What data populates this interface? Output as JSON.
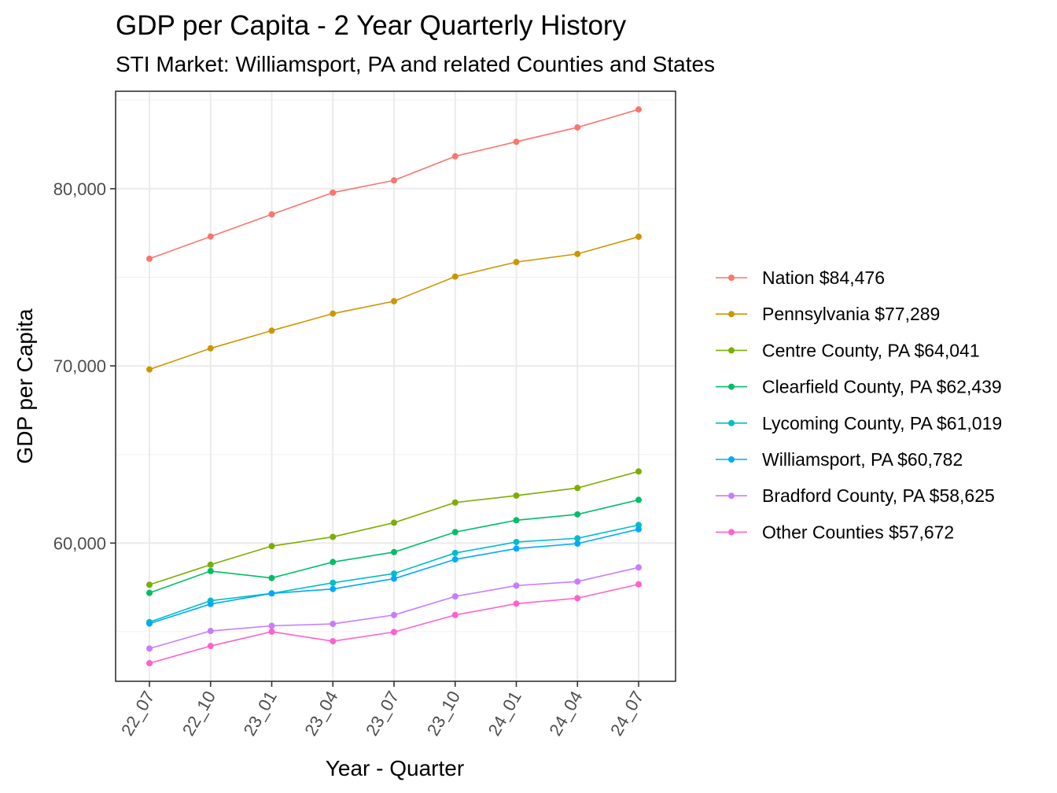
{
  "chart_data": {
    "type": "line",
    "title": "GDP per Capita - 2 Year Quarterly History",
    "subtitle": "STI Market: Williamsport, PA and related Counties and States",
    "xlabel": "Year - Quarter",
    "ylabel": "GDP per Capita",
    "categories": [
      "22_07",
      "22_10",
      "23_01",
      "23_04",
      "23_07",
      "23_10",
      "24_01",
      "24_04",
      "24_07"
    ],
    "ylim": [
      52200,
      85500
    ],
    "yticks": [
      60000,
      70000,
      80000
    ],
    "ytick_labels": [
      "60,000",
      "70,000",
      "80,000"
    ],
    "y_minor_gridlines": [
      55000,
      65000,
      75000,
      85000
    ],
    "grid": true,
    "legend_position": "right",
    "series": [
      {
        "name": "Nation $84,476",
        "color": "#F8766D",
        "values": [
          76050,
          77300,
          78550,
          79780,
          80470,
          81830,
          82650,
          83460,
          84476
        ]
      },
      {
        "name": "Pennsylvania $77,289",
        "color": "#CD9600",
        "values": [
          69800,
          70990,
          71990,
          72950,
          73650,
          75040,
          75860,
          76320,
          77289
        ]
      },
      {
        "name": "Centre County, PA $64,041",
        "color": "#7CAE00",
        "values": [
          57650,
          58780,
          59830,
          60350,
          61150,
          62290,
          62680,
          63110,
          64041
        ]
      },
      {
        "name": "Clearfield County, PA $62,439",
        "color": "#00BE67",
        "values": [
          57190,
          58420,
          58030,
          58930,
          59490,
          60620,
          61290,
          61620,
          62439
        ]
      },
      {
        "name": "Lycoming County, PA $61,019",
        "color": "#00BFC4",
        "values": [
          55540,
          56750,
          57160,
          57760,
          58280,
          59440,
          60060,
          60270,
          61019
        ]
      },
      {
        "name": "Williamsport, PA $60,782",
        "color": "#00A9FF",
        "values": [
          55460,
          56560,
          57160,
          57410,
          57990,
          59080,
          59690,
          59970,
          60782
        ]
      },
      {
        "name": "Bradford County, PA $58,625",
        "color": "#C77CFF",
        "values": [
          54050,
          55040,
          55330,
          55440,
          55940,
          56990,
          57600,
          57830,
          58625
        ]
      },
      {
        "name": "Other Counties $57,672",
        "color": "#FF61CC",
        "values": [
          53220,
          54190,
          55000,
          54460,
          54980,
          55940,
          56580,
          56890,
          57672
        ]
      }
    ]
  }
}
